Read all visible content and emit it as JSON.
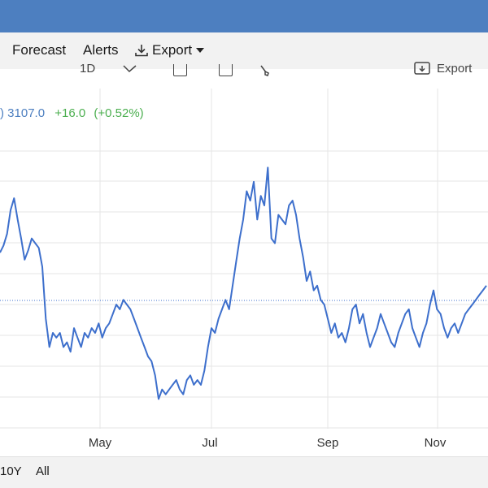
{
  "colors": {
    "header": "#4d7fc0",
    "line": "#3d6fcc",
    "positive": "#4caf50",
    "grid": "#e6e6e6"
  },
  "menu": {
    "forecast": "Forecast",
    "alerts": "Alerts",
    "export": "Export"
  },
  "toolbar": {
    "timeframe": "1D",
    "export": "Export"
  },
  "quote": {
    "prefix": ")",
    "price": "3107.0",
    "change": "+16.0",
    "change_pct": "(+0.52%)"
  },
  "range_buttons": [
    "10Y",
    "All"
  ],
  "chart_data": {
    "type": "line",
    "x_tick_labels": [
      "May",
      "Jul",
      "Sep",
      "Nov"
    ],
    "grid": true,
    "reference_line": "dotted horizontal at last price",
    "series": [
      {
        "values": [
          3120,
          3135,
          3160,
          3210,
          3235,
          3190,
          3150,
          3105,
          3125,
          3150,
          3140,
          3130,
          3090,
          2980,
          2920,
          2950,
          2940,
          2950,
          2920,
          2930,
          2910,
          2960,
          2940,
          2920,
          2950,
          2940,
          2960,
          2950,
          2970,
          2940,
          2960,
          2970,
          2990,
          3010,
          3000,
          3020,
          3010,
          3000,
          2980,
          2960,
          2940,
          2920,
          2900,
          2890,
          2860,
          2810,
          2830,
          2820,
          2830,
          2840,
          2850,
          2830,
          2820,
          2850,
          2860,
          2840,
          2850,
          2840,
          2870,
          2920,
          2960,
          2950,
          2980,
          3000,
          3020,
          3000,
          3050,
          3100,
          3150,
          3190,
          3250,
          3230,
          3270,
          3190,
          3240,
          3220,
          3300,
          3150,
          3140,
          3200,
          3190,
          3180,
          3220,
          3230,
          3200,
          3150,
          3110,
          3060,
          3080,
          3040,
          3050,
          3020,
          3010,
          2980,
          2950,
          2970,
          2940,
          2950,
          2930,
          2960,
          3000,
          3010,
          2970,
          2990,
          2950,
          2920,
          2940,
          2960,
          2990,
          2970,
          2950,
          2930,
          2920,
          2950,
          2970,
          2990,
          3000,
          2960,
          2940,
          2920,
          2950,
          2970,
          3010,
          3040,
          3000,
          2990,
          2960,
          2940,
          2960,
          2970,
          2950,
          2970,
          2990,
          3000,
          3010,
          3020,
          3030,
          3040,
          3050
        ]
      }
    ]
  }
}
